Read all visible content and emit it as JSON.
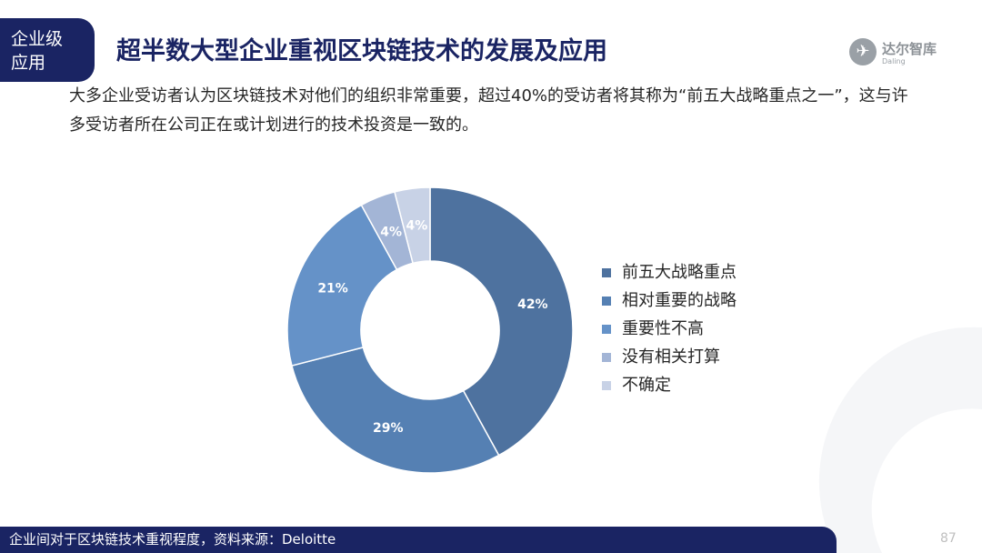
{
  "header": {
    "tag": "企业级\n应用",
    "title": "超半数大型企业重视区块链技术的发展及应用"
  },
  "logo": {
    "name": "达尔智库",
    "sub": "Daling"
  },
  "description": "大多企业受访者认为区块链技术对他们的组织非常重要，超过40%的受访者将其称为“前五大战略重点之一”，这与许多受访者所在公司正在或计划进行的技术投资是一致的。",
  "footer": {
    "text": "企业间对于区块链技术重视程度，资料来源：Deloitte",
    "page": "87"
  },
  "chart_data": {
    "type": "pie",
    "donut": true,
    "categories": [
      "前五大战略重点",
      "相对重要的战略",
      "重要性不高",
      "没有相关打算",
      "不确定"
    ],
    "values": [
      42,
      29,
      21,
      4,
      4
    ],
    "labels": [
      "42%",
      "29%",
      "21%",
      "4%",
      "4%"
    ],
    "colors": [
      "#4e729f",
      "#5580b3",
      "#6592c8",
      "#a3b5d6",
      "#c8d2e6"
    ],
    "legend_position": "right"
  }
}
